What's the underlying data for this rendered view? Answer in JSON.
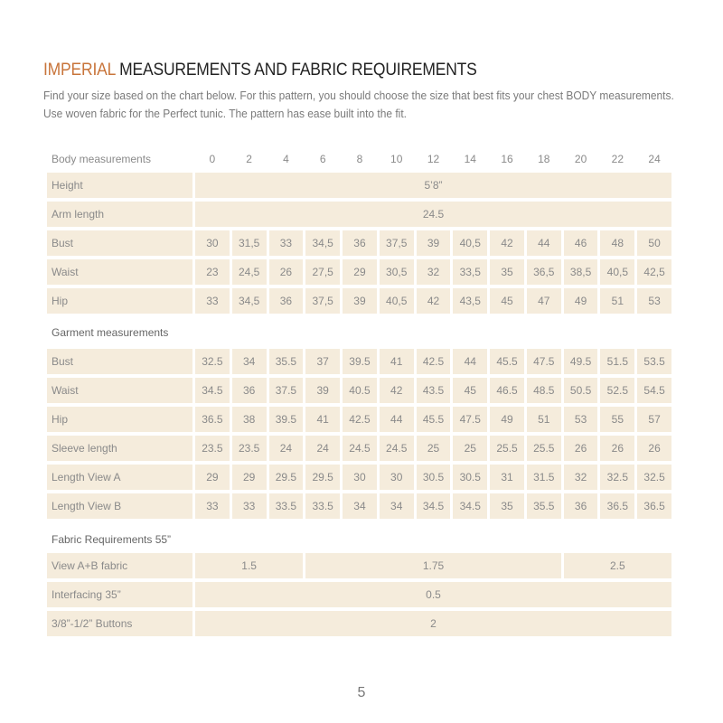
{
  "title": {
    "accent": "IMPERIAL",
    "rest": " MEASUREMENTS AND FABRIC REQUIREMENTS"
  },
  "intro": [
    "Find your size based on the chart below. For this pattern, you should choose the size that best fits your chest BODY measurements.",
    "Use woven fabric for the Perfect tunic. The pattern has ease built into the fit."
  ],
  "body": {
    "header_label": "Body measurements",
    "sizes": [
      "0",
      "2",
      "4",
      "6",
      "8",
      "10",
      "12",
      "14",
      "16",
      "18",
      "20",
      "22",
      "24"
    ],
    "rows": [
      {
        "label": "Height",
        "spans": [
          {
            "value": "5’8”",
            "cols": 13
          }
        ]
      },
      {
        "label": "Arm length",
        "spans": [
          {
            "value": "24.5",
            "cols": 13
          }
        ]
      },
      {
        "label": "Bust",
        "values": [
          "30",
          "31,5",
          "33",
          "34,5",
          "36",
          "37,5",
          "39",
          "40,5",
          "42",
          "44",
          "46",
          "48",
          "50"
        ]
      },
      {
        "label": "Waist",
        "values": [
          "23",
          "24,5",
          "26",
          "27,5",
          "29",
          "30,5",
          "32",
          "33,5",
          "35",
          "36,5",
          "38,5",
          "40,5",
          "42,5"
        ]
      },
      {
        "label": "Hip",
        "values": [
          "33",
          "34,5",
          "36",
          "37,5",
          "39",
          "40,5",
          "42",
          "43,5",
          "45",
          "47",
          "49",
          "51",
          "53"
        ]
      }
    ]
  },
  "garment": {
    "section_label": "Garment measurements",
    "rows": [
      {
        "label": "Bust",
        "values": [
          "32.5",
          "34",
          "35.5",
          "37",
          "39.5",
          "41",
          "42.5",
          "44",
          "45.5",
          "47.5",
          "49.5",
          "51.5",
          "53.5"
        ]
      },
      {
        "label": "Waist",
        "values": [
          "34.5",
          "36",
          "37.5",
          "39",
          "40.5",
          "42",
          "43.5",
          "45",
          "46.5",
          "48.5",
          "50.5",
          "52.5",
          "54.5"
        ]
      },
      {
        "label": "Hip",
        "values": [
          "36.5",
          "38",
          "39.5",
          "41",
          "42.5",
          "44",
          "45.5",
          "47.5",
          "49",
          "51",
          "53",
          "55",
          "57"
        ]
      },
      {
        "label": "Sleeve length",
        "values": [
          "23.5",
          "23.5",
          "24",
          "24",
          "24.5",
          "24.5",
          "25",
          "25",
          "25.5",
          "25.5",
          "26",
          "26",
          "26"
        ]
      },
      {
        "label": "Length View A",
        "values": [
          "29",
          "29",
          "29.5",
          "29.5",
          "30",
          "30",
          "30.5",
          "30.5",
          "31",
          "31.5",
          "32",
          "32.5",
          "32.5"
        ]
      },
      {
        "label": "Length View B",
        "values": [
          "33",
          "33",
          "33.5",
          "33.5",
          "34",
          "34",
          "34.5",
          "34.5",
          "35",
          "35.5",
          "36",
          "36.5",
          "36.5"
        ]
      }
    ]
  },
  "fabric": {
    "section_label": "Fabric Requirements 55”",
    "rows": [
      {
        "label": "View  A+B fabric",
        "spans": [
          {
            "value": "1.5",
            "cols": 3
          },
          {
            "value": "1.75",
            "cols": 7
          },
          {
            "value": "2.5",
            "cols": 3
          }
        ]
      },
      {
        "label": "Interfacing 35”",
        "spans": [
          {
            "value": "0.5",
            "cols": 13
          }
        ]
      },
      {
        "label": " 3/8”-1/2” Buttons",
        "spans": [
          {
            "value": "2",
            "cols": 13
          }
        ]
      }
    ]
  },
  "page_number": "5",
  "colors": {
    "accent": "#c8743a",
    "cell_bg": "#f5ecdc",
    "text": "#8a8a8a"
  }
}
